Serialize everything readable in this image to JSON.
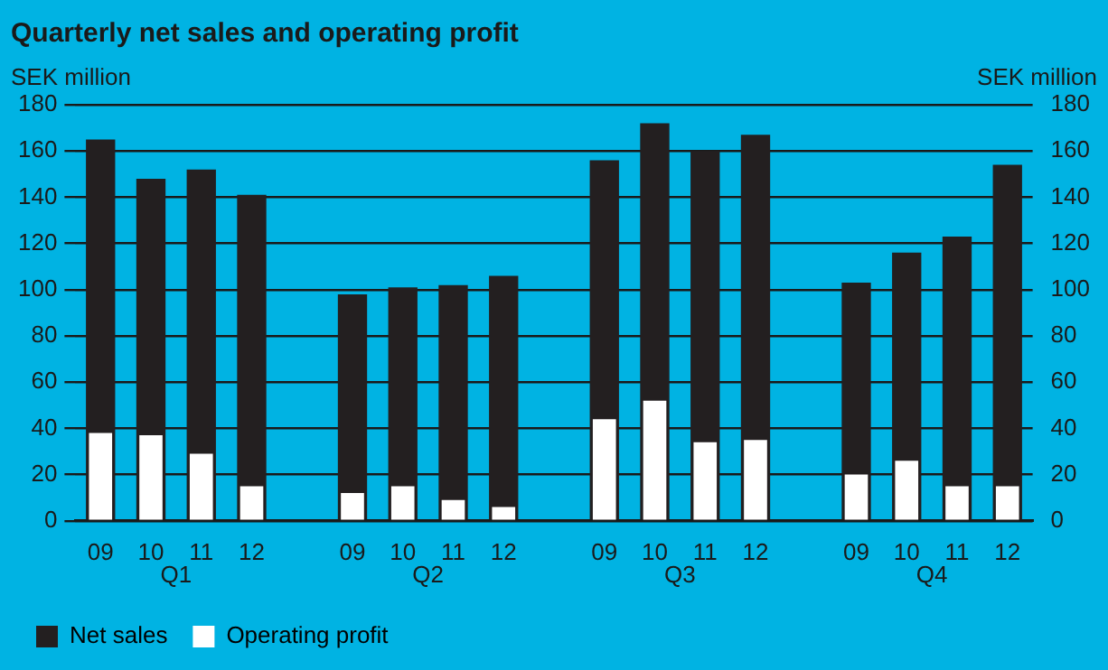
{
  "chart_data": {
    "type": "bar",
    "title": "Quarterly net sales and operating profit",
    "ylabel": "SEK million",
    "y2label": "SEK million",
    "categories": [
      "09",
      "10",
      "11",
      "12",
      null,
      "09",
      "10",
      "11",
      "12",
      null,
      "09",
      "10",
      "11",
      "12",
      null,
      "09",
      "10",
      "11",
      "12"
    ],
    "series": [
      {
        "name": "Net sales",
        "color": "#231f20",
        "values": [
          165,
          148,
          152,
          141,
          null,
          98,
          101,
          102,
          106,
          null,
          156,
          172,
          160,
          167,
          null,
          103,
          116,
          123,
          154
        ]
      },
      {
        "name": "Operating profit",
        "color": "#ffffff",
        "values": [
          38,
          37,
          29,
          15,
          null,
          12,
          15,
          9,
          6,
          null,
          44,
          52,
          34,
          35,
          null,
          20,
          26,
          15,
          15
        ]
      }
    ],
    "annotations": [
      "Q1",
      "Q2",
      "Q3",
      "Q4"
    ],
    "ylim": [
      0,
      180
    ],
    "yticks": [
      0,
      20,
      40,
      60,
      80,
      100,
      120,
      140,
      160,
      180
    ],
    "y2lim": [
      0,
      180
    ],
    "y2ticks": [
      0,
      20,
      40,
      60,
      80,
      100,
      120,
      140,
      160,
      180
    ],
    "grid": "y",
    "legend": "bottom left"
  }
}
